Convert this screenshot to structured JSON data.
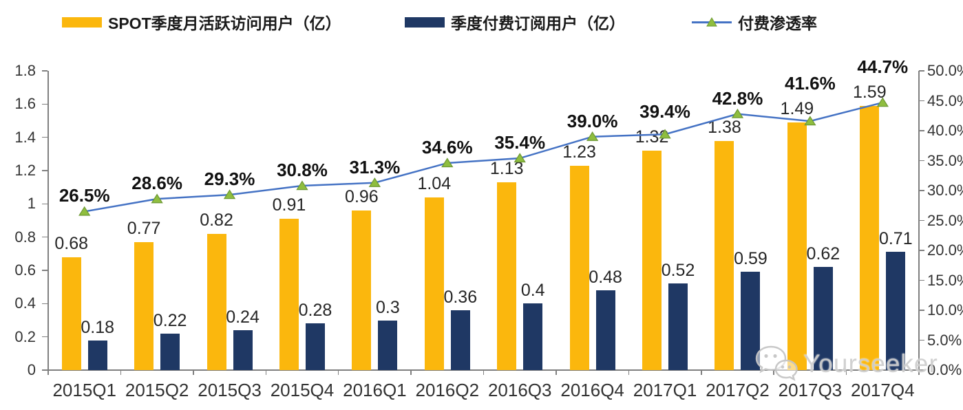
{
  "legend": {
    "items": [
      {
        "label": "SPOT季度月活跃访问用户（亿）",
        "color": "#FBB70D",
        "type": "bar"
      },
      {
        "label": "季度付费订阅用户（亿）",
        "color": "#1F3864",
        "type": "bar"
      },
      {
        "label": "付费渗透率",
        "color": "#4472C4",
        "marker_color": "#8FBE3F",
        "type": "line"
      }
    ]
  },
  "chart_data": {
    "type": "bar+line combo",
    "categories": [
      "2015Q1",
      "2015Q2",
      "2015Q3",
      "2015Q4",
      "2016Q1",
      "2016Q2",
      "2016Q3",
      "2016Q4",
      "2017Q1",
      "2017Q2",
      "2017Q3",
      "2017Q4"
    ],
    "series": [
      {
        "name": "SPOT季度月活跃访问用户（亿）",
        "type": "bar",
        "axis": "left",
        "color": "#FBB70D",
        "values": [
          0.68,
          0.77,
          0.82,
          0.91,
          0.96,
          1.04,
          1.13,
          1.23,
          1.32,
          1.38,
          1.49,
          1.59
        ],
        "labels": [
          "0.68",
          "0.77",
          "0.82",
          "0.91",
          "0.96",
          "1.04",
          "1.13",
          "1.23",
          "1.32",
          "1.38",
          "1.49",
          "1.59"
        ]
      },
      {
        "name": "季度付费订阅用户（亿）",
        "type": "bar",
        "axis": "left",
        "color": "#1F3864",
        "values": [
          0.18,
          0.22,
          0.24,
          0.28,
          0.3,
          0.36,
          0.4,
          0.48,
          0.52,
          0.59,
          0.62,
          0.71
        ],
        "labels": [
          "0.18",
          "0.22",
          "0.24",
          "0.28",
          "0.3",
          "0.36",
          "0.4",
          "0.48",
          "0.52",
          "0.59",
          "0.62",
          "0.71"
        ]
      },
      {
        "name": "付费渗透率",
        "type": "line",
        "axis": "right",
        "color": "#4472C4",
        "marker": "triangle",
        "marker_color": "#8FBE3F",
        "marker_edge": "#6F9A36",
        "values_pct": [
          26.5,
          28.6,
          29.3,
          30.8,
          31.3,
          34.6,
          35.4,
          39.0,
          39.4,
          42.8,
          41.6,
          44.7
        ],
        "labels": [
          "26.5%",
          "28.6%",
          "29.3%",
          "30.8%",
          "31.3%",
          "34.6%",
          "35.4%",
          "39.0%",
          "39.4%",
          "42.8%",
          "41.6%",
          "44.7%"
        ]
      }
    ],
    "left_axis": {
      "min": 0,
      "max": 1.8,
      "step": 0.2,
      "tick_labels": [
        "1.8",
        "1.6",
        "1.4",
        "1.2",
        "1",
        "0.8",
        "0.6",
        "0.4",
        "0.2",
        "0"
      ]
    },
    "right_axis": {
      "min": 0,
      "max": 50,
      "step": 5,
      "unit": "%",
      "tick_labels": [
        "50.0%",
        "45.0%",
        "40.0%",
        "35.0%",
        "30.0%",
        "25.0%",
        "20.0%",
        "15.0%",
        "10.0%",
        "5.0%",
        "0.0%"
      ]
    },
    "grid": false,
    "legend_position": "top"
  },
  "watermark": {
    "text": "Yourseeker",
    "icon": "wechat-icon"
  }
}
